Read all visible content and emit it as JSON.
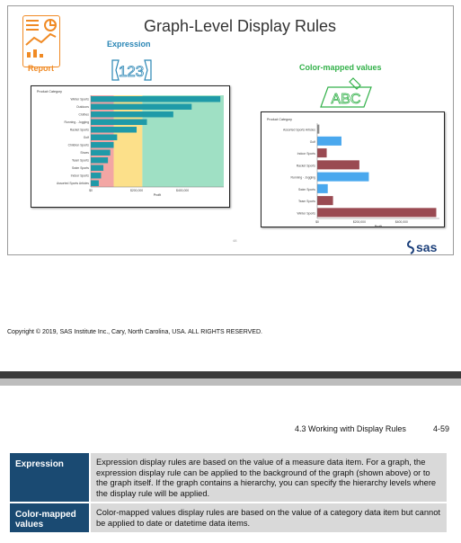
{
  "slide": {
    "title": "Graph-Level Display Rules",
    "report_label": "Report",
    "expression_label": "Expression",
    "expression_glyph": "123",
    "color_mapped_label": "Color-mapped values",
    "color_mapped_glyph": "ABC",
    "page_num": "48",
    "logo_text": "sas",
    "colors": {
      "report": "#f08a24",
      "expression": "#2a86b5",
      "color_mapped": "#33b14a",
      "logo": "#1b3f7a"
    }
  },
  "chart_data": [
    {
      "type": "bar",
      "orientation": "horizontal",
      "title": "",
      "category_axis_label": "Product Category",
      "xlabel": "Profit",
      "x_ticks": [
        "$0",
        "$200,000",
        "$400,000"
      ],
      "xlim": [
        0,
        580000
      ],
      "categories": [
        "Winter Sports",
        "Outdoors",
        "Clothes",
        "Running - Jogging",
        "Racket Sports",
        "Golf",
        "Children Sports",
        "Shoes",
        "Team Sports",
        "Swim Sports",
        "Indoor Sports",
        "Assorted Sports Articles"
      ],
      "values": [
        565000,
        440000,
        360000,
        245000,
        200000,
        115000,
        100000,
        85000,
        75000,
        55000,
        45000,
        35000
      ],
      "bar_color": "#1f9aa8",
      "background_bands": [
        {
          "from": 0,
          "to": 100000,
          "color": "#f3a6a4"
        },
        {
          "from": 100000,
          "to": 225000,
          "color": "#fce08a"
        },
        {
          "from": 225000,
          "to": 580000,
          "color": "#9fe0c4"
        }
      ]
    },
    {
      "type": "bar",
      "orientation": "horizontal",
      "title": "",
      "category_axis_label": "Product Category",
      "xlabel": "Profit",
      "x_ticks": [
        "$0",
        "$200,000",
        "$400,000"
      ],
      "xlim": [
        0,
        580000
      ],
      "categories": [
        "Assorted Sports Articles",
        "Golf",
        "Indoor Sports",
        "Racket Sports",
        "Running - Jogging",
        "Swim Sports",
        "Team Sports",
        "Winter Sports"
      ],
      "values": [
        10000,
        115000,
        45000,
        200000,
        245000,
        50000,
        75000,
        565000
      ],
      "colors": [
        "#8c8c8c",
        "#4aa8ee",
        "#9a4a52",
        "#9a4a52",
        "#4aa8ee",
        "#4aa8ee",
        "#9a4a52",
        "#9a4a52"
      ]
    }
  ],
  "copyright": "Copyright © 2019, SAS Institute Inc., Cary, North Carolina, USA. ALL RIGHTS RESERVED.",
  "page_header": {
    "section": "4.3 Working with Display Rules",
    "page": "4-59"
  },
  "definitions": [
    {
      "term": "Expression",
      "description": "Expression display rules are based on the value of a measure data item. For a graph, the expression display rule can be applied to the background of the graph (shown above) or to the graph itself. If the graph contains a hierarchy, you can specify the hierarchy levels where the display rule will be applied."
    },
    {
      "term": "Color-mapped values",
      "description": "Color-mapped values display rules are based on the value of a category data item but cannot be applied to date or datetime data items."
    }
  ]
}
